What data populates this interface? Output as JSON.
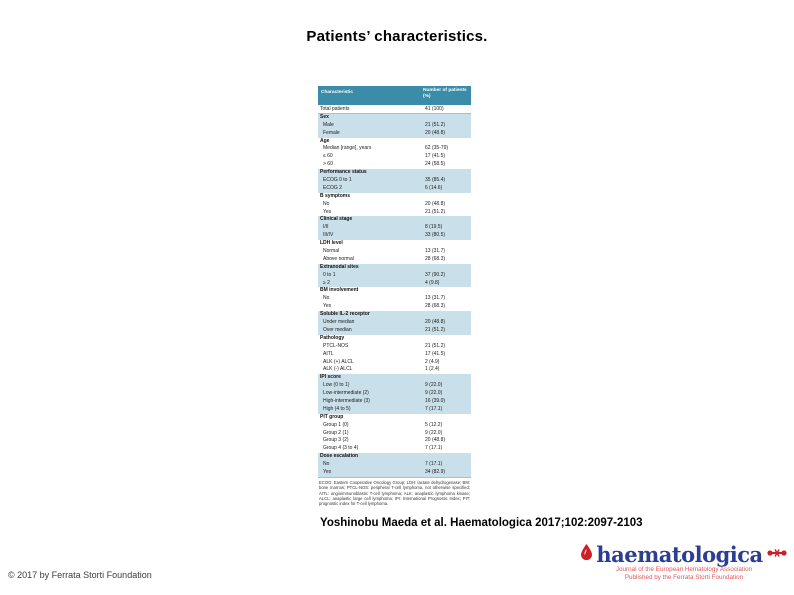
{
  "slide": {
    "title": "Patients’ characteristics.",
    "citation": "Yoshinobu Maeda et al. Haematologica 2017;102:2097-2103",
    "copyright": "© 2017 by Ferrata Storti Foundation"
  },
  "logo": {
    "wordmark": "haematologica",
    "tagline_line1": "Journal of the European Hematology Association",
    "tagline_line2": "Published by the Ferrata Storti Foundation",
    "brand_blue": "#2b3f92",
    "brand_red": "#cc2027",
    "tagline_red": "#e0575b",
    "drop_icon": "red-drop-icon",
    "mark_icon": "eha-red-mark-icon"
  },
  "table": {
    "header": {
      "characteristic": "Characteristic",
      "value": "Number of patients (%)"
    },
    "header_bg": "#3a8ca9",
    "stripe_bg": "#c9dfe9",
    "rows": [
      {
        "label": "Total patients",
        "value": "41 (100)",
        "type": "total",
        "shaded": false
      },
      {
        "label": "Sex",
        "value": "",
        "type": "section",
        "shaded": true
      },
      {
        "label": "Male",
        "value": "21 (51.2)",
        "type": "data",
        "shaded": true
      },
      {
        "label": "Female",
        "value": "20 (48.8)",
        "type": "data",
        "shaded": true
      },
      {
        "label": "Age",
        "value": "",
        "type": "section",
        "shaded": false
      },
      {
        "label": "Median [range], years",
        "value": "62 (35-79)",
        "type": "data",
        "shaded": false
      },
      {
        "label": "≤ 60",
        "value": "17 (41.5)",
        "type": "data",
        "shaded": false
      },
      {
        "label": "> 60",
        "value": "24 (58.5)",
        "type": "data",
        "shaded": false
      },
      {
        "label": "Performance status",
        "value": "",
        "type": "section",
        "shaded": true
      },
      {
        "label": "ECOG 0 to 1",
        "value": "35 (85.4)",
        "type": "data",
        "shaded": true
      },
      {
        "label": "ECOG 2",
        "value": "6 (14.6)",
        "type": "data",
        "shaded": true
      },
      {
        "label": "B symptoms",
        "value": "",
        "type": "section",
        "shaded": false
      },
      {
        "label": "No",
        "value": "20 (48.8)",
        "type": "data",
        "shaded": false
      },
      {
        "label": "Yes",
        "value": "21 (51.2)",
        "type": "data",
        "shaded": false
      },
      {
        "label": "Clinical stage",
        "value": "",
        "type": "section",
        "shaded": true
      },
      {
        "label": "I/II",
        "value": "8 (19.5)",
        "type": "data",
        "shaded": true
      },
      {
        "label": "III/IV",
        "value": "33 (80.5)",
        "type": "data",
        "shaded": true
      },
      {
        "label": "LDH level",
        "value": "",
        "type": "section",
        "shaded": false
      },
      {
        "label": "Normal",
        "value": "13 (31.7)",
        "type": "data",
        "shaded": false
      },
      {
        "label": "Above normal",
        "value": "28 (68.3)",
        "type": "data",
        "shaded": false
      },
      {
        "label": "Extranodal sites",
        "value": "",
        "type": "section",
        "shaded": true
      },
      {
        "label": "0 to 1",
        "value": "37 (90.2)",
        "type": "data",
        "shaded": true
      },
      {
        "label": "≥ 2",
        "value": "4 (9.8)",
        "type": "data",
        "shaded": true
      },
      {
        "label": "BM involvement",
        "value": "",
        "type": "section",
        "shaded": false
      },
      {
        "label": "No",
        "value": "13 (31.7)",
        "type": "data",
        "shaded": false
      },
      {
        "label": "Yes",
        "value": "28 (68.3)",
        "type": "data",
        "shaded": false
      },
      {
        "label": "Soluble IL-2 receptor",
        "value": "",
        "type": "section",
        "shaded": true
      },
      {
        "label": "Under median",
        "value": "20 (48.8)",
        "type": "data",
        "shaded": true
      },
      {
        "label": "Over median",
        "value": "21 (51.2)",
        "type": "data",
        "shaded": true
      },
      {
        "label": "Pathology",
        "value": "",
        "type": "section",
        "shaded": false
      },
      {
        "label": "PTCL-NOS",
        "value": "21 (51.2)",
        "type": "data",
        "shaded": false
      },
      {
        "label": "AITL",
        "value": "17 (41.5)",
        "type": "data",
        "shaded": false
      },
      {
        "label": "ALK (+) ALCL",
        "value": "2 (4.9)",
        "type": "data",
        "shaded": false
      },
      {
        "label": "ALK (-) ALCL",
        "value": "1 (2.4)",
        "type": "data",
        "shaded": false
      },
      {
        "label": "IPI score",
        "value": "",
        "type": "section",
        "shaded": true
      },
      {
        "label": "Low (0 to 1)",
        "value": "9 (22.0)",
        "type": "data",
        "shaded": true
      },
      {
        "label": "Low-intermediate (2)",
        "value": "9 (22.0)",
        "type": "data",
        "shaded": true
      },
      {
        "label": "High-intermediate (3)",
        "value": "16 (39.0)",
        "type": "data",
        "shaded": true
      },
      {
        "label": "High (4 to 5)",
        "value": "7 (17.1)",
        "type": "data",
        "shaded": true
      },
      {
        "label": "PIT group",
        "value": "",
        "type": "section",
        "shaded": false
      },
      {
        "label": "Group 1 (0)",
        "value": "5 (12.2)",
        "type": "data",
        "shaded": false
      },
      {
        "label": "Group 2 (1)",
        "value": "9 (22.0)",
        "type": "data",
        "shaded": false
      },
      {
        "label": "Group 3 (2)",
        "value": "20 (48.8)",
        "type": "data",
        "shaded": false
      },
      {
        "label": "Group 4 (3 to 4)",
        "value": "7 (17.1)",
        "type": "data",
        "shaded": false
      },
      {
        "label": "Dose escalation",
        "value": "",
        "type": "section",
        "shaded": true
      },
      {
        "label": "No",
        "value": "7 (17.1)",
        "type": "data",
        "shaded": true
      },
      {
        "label": "Yes",
        "value": "34 (82.9)",
        "type": "data",
        "shaded": true
      }
    ],
    "footnote": "ECOG: Eastern Cooperative Oncology Group; LDH: lactate dehydrogenase; BM: bone marrow; PTCL-NOS: peripheral T-cell lymphoma, not otherwise specified; AITL: angioimmunoblastic T-cell lymphoma; ALK: anaplastic lymphoma kinase; ALCL: anaplastic large cell lymphoma; IPI: International Prognostic Index; PIT: prognostic index for T-cell lymphoma."
  }
}
